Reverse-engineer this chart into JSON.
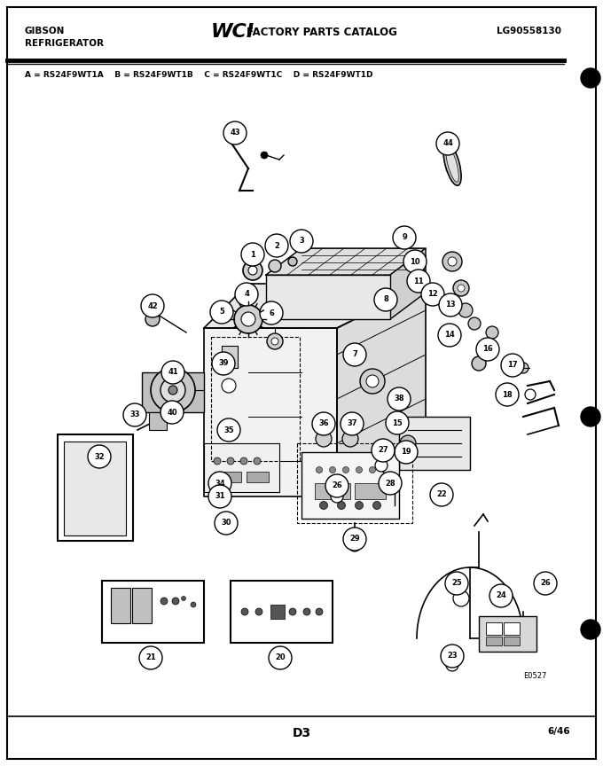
{
  "header_left_line1": "GIBSON",
  "header_left_line2": "REFRIGERATOR",
  "header_right": "LG90558130",
  "model_line": "A = RS24F9WT1A    B = RS24F9WT1B    C = RS24F9WT1C    D = RS24F9WT1D",
  "footer_center": "D3",
  "footer_right": "6/46",
  "bg_color": "#ffffff",
  "text_color": "#000000",
  "fig_width": 6.8,
  "fig_height": 8.64,
  "dpi": 100
}
